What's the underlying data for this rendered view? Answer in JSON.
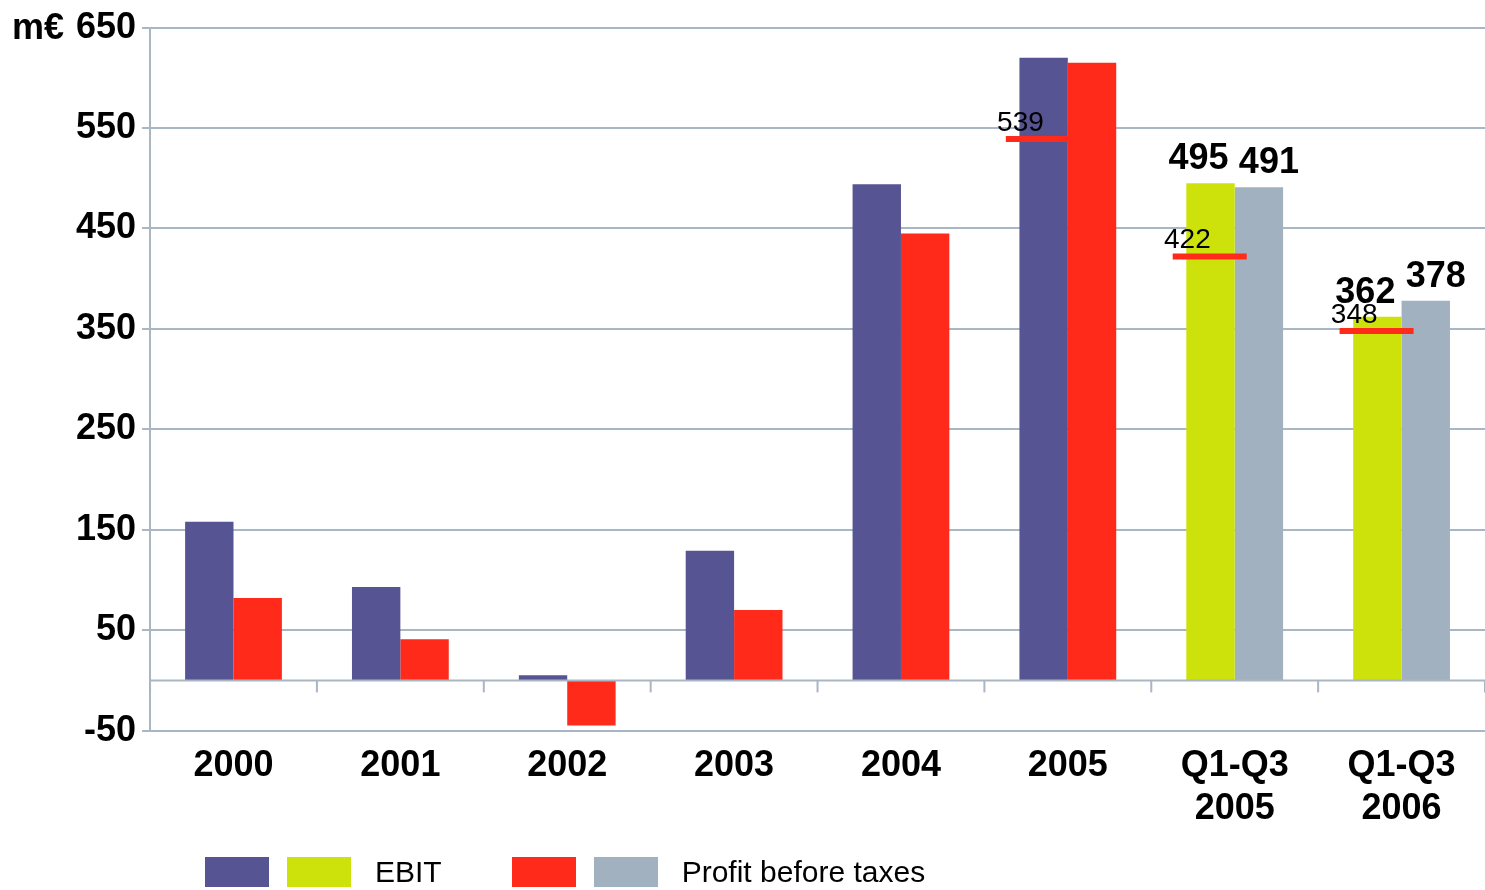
{
  "chart_data": {
    "type": "bar",
    "ylabel": "m€",
    "categories": [
      "2000",
      "2001",
      "2002",
      "2003",
      "2004",
      "2005",
      "Q1-Q3 2005",
      "Q1-Q3 2006"
    ],
    "series": [
      {
        "name": "EBIT",
        "colors": [
          "#565493",
          "#565493",
          "#565493",
          "#565493",
          "#565493",
          "#565493",
          "#cde20a",
          "#cde20a"
        ],
        "values": [
          158,
          93,
          5,
          129,
          494,
          620,
          495,
          362
        ],
        "value_labels": [
          null,
          null,
          null,
          null,
          null,
          null,
          "495",
          "362"
        ]
      },
      {
        "name": "Profit before taxes",
        "colors": [
          "#ff2a1a",
          "#ff2a1a",
          "#ff2a1a",
          "#ff2a1a",
          "#ff2a1a",
          "#ff2a1a",
          "#a2b1bf",
          "#a2b1bf"
        ],
        "values": [
          82,
          41,
          -45,
          70,
          445,
          615,
          491,
          378
        ],
        "value_labels": [
          null,
          null,
          null,
          null,
          null,
          null,
          "491",
          "378"
        ]
      }
    ],
    "ylim": [
      -50,
      650
    ],
    "yticks": [
      -50,
      50,
      150,
      250,
      350,
      450,
      550,
      650
    ],
    "grid": "y",
    "legend": "bottom",
    "annotations": [
      {
        "text": "539",
        "x": "2005",
        "y": 539
      },
      {
        "text": "422",
        "x": "Q1-Q3 2005",
        "y": 422
      },
      {
        "text": "348",
        "x": "Q1-Q3 2006",
        "y": 348
      }
    ]
  }
}
